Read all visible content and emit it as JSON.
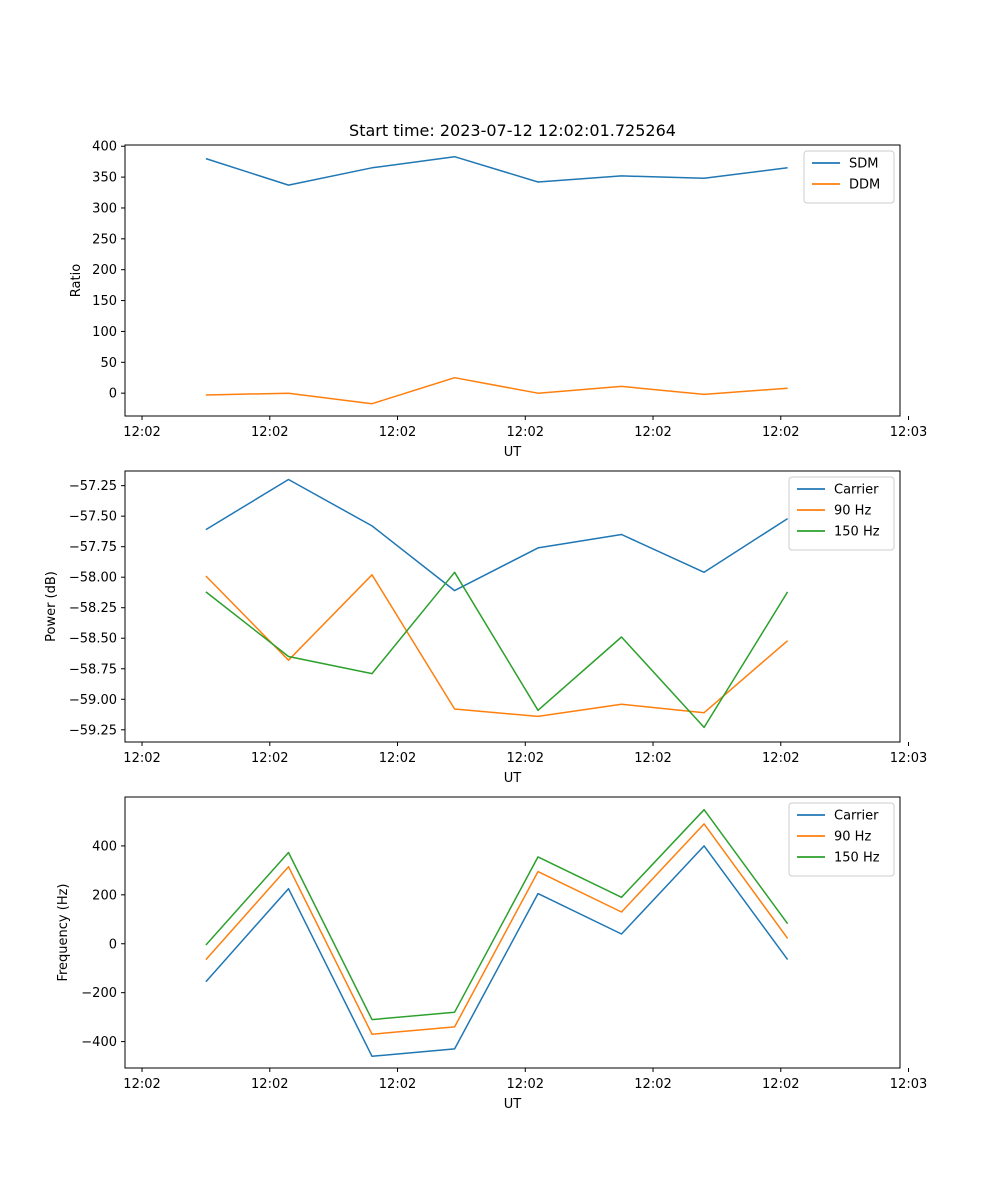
{
  "figure_title": "Start time: 2023-07-12 12:02:01.725264",
  "chart_data": [
    {
      "type": "line",
      "title": "Start time: 2023-07-12 12:02:01.725264",
      "xlabel": "UT",
      "ylabel": "Ratio",
      "ylim": [
        -37,
        402
      ],
      "yticks": [
        0,
        50,
        100,
        150,
        200,
        250,
        300,
        350,
        400
      ],
      "ytick_labels": [
        "0",
        "50",
        "100",
        "150",
        "200",
        "250",
        "300",
        "350",
        "400"
      ],
      "xlim": [
        -0.5,
        8.6
      ],
      "xticks": [
        -0.3,
        1.2,
        2.7,
        4.2,
        5.7,
        7.2,
        8.7
      ],
      "xtick_labels": [
        "12:02",
        "12:02",
        "12:02",
        "12:02",
        "12:02",
        "12:02",
        "12:03"
      ],
      "x": [
        0.45,
        1.42,
        2.4,
        3.37,
        4.35,
        5.33,
        6.3,
        7.28
      ],
      "legend": "top-right",
      "series": [
        {
          "name": "SDM",
          "color": "#1f77b4",
          "values": [
            380,
            337,
            365,
            383,
            342,
            352,
            348,
            365
          ]
        },
        {
          "name": "DDM",
          "color": "#ff7f0e",
          "values": [
            -3,
            0,
            -17,
            25,
            0,
            11,
            -2,
            8
          ]
        }
      ]
    },
    {
      "type": "line",
      "xlabel": "UT",
      "ylabel": "Power (dB)",
      "ylim": [
        -59.35,
        -57.13
      ],
      "yticks": [
        -59.25,
        -59.0,
        -58.75,
        -58.5,
        -58.25,
        -58.0,
        -57.75,
        -57.5,
        -57.25
      ],
      "ytick_labels": [
        "−59.25",
        "−59.00",
        "−58.75",
        "−58.50",
        "−58.25",
        "−58.00",
        "−57.75",
        "−57.50",
        "−57.25"
      ],
      "xlim": [
        -0.5,
        8.6
      ],
      "xticks": [
        -0.3,
        1.2,
        2.7,
        4.2,
        5.7,
        7.2,
        8.7
      ],
      "xtick_labels": [
        "12:02",
        "12:02",
        "12:02",
        "12:02",
        "12:02",
        "12:02",
        "12:03"
      ],
      "x": [
        0.45,
        1.42,
        2.4,
        3.37,
        4.35,
        5.33,
        6.3,
        7.28
      ],
      "legend": "top-right",
      "series": [
        {
          "name": "Carrier",
          "color": "#1f77b4",
          "values": [
            -57.61,
            -57.2,
            -57.58,
            -58.11,
            -57.76,
            -57.65,
            -57.96,
            -57.52
          ]
        },
        {
          "name": "90 Hz",
          "color": "#ff7f0e",
          "values": [
            -57.99,
            -58.68,
            -57.98,
            -59.08,
            -59.14,
            -59.04,
            -59.11,
            -58.52
          ]
        },
        {
          "name": "150 Hz",
          "color": "#2ca02c",
          "values": [
            -58.12,
            -58.65,
            -58.79,
            -57.96,
            -59.09,
            -58.49,
            -59.23,
            -58.12
          ]
        }
      ]
    },
    {
      "type": "line",
      "xlabel": "UT",
      "ylabel": "Frequency (Hz)",
      "ylim": [
        -508,
        600
      ],
      "yticks": [
        -400,
        -200,
        0,
        200,
        400
      ],
      "ytick_labels": [
        "−400",
        "−200",
        "0",
        "200",
        "400"
      ],
      "xlim": [
        -0.5,
        8.6
      ],
      "xticks": [
        -0.3,
        1.2,
        2.7,
        4.2,
        5.7,
        7.2,
        8.7
      ],
      "xtick_labels": [
        "12:02",
        "12:02",
        "12:02",
        "12:02",
        "12:02",
        "12:02",
        "12:03"
      ],
      "x": [
        0.45,
        1.42,
        2.4,
        3.37,
        4.35,
        5.33,
        6.3,
        7.28
      ],
      "legend": "top-right",
      "series": [
        {
          "name": "Carrier",
          "color": "#1f77b4",
          "values": [
            -155,
            225,
            -460,
            -430,
            205,
            40,
            400,
            -65
          ]
        },
        {
          "name": "90 Hz",
          "color": "#ff7f0e",
          "values": [
            -65,
            315,
            -370,
            -340,
            295,
            130,
            490,
            22
          ]
        },
        {
          "name": "150 Hz",
          "color": "#2ca02c",
          "values": [
            -5,
            373,
            -310,
            -280,
            355,
            190,
            548,
            82
          ]
        }
      ]
    }
  ]
}
